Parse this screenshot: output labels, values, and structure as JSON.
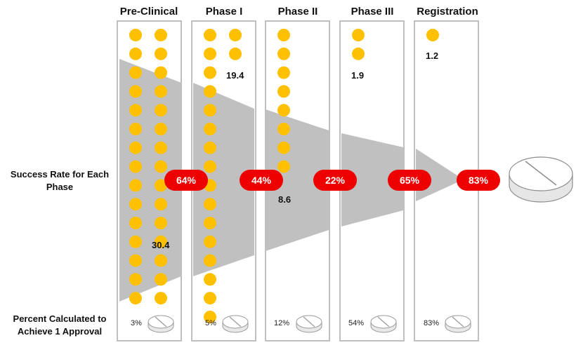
{
  "side_labels": {
    "success_rate": "Success Rate for Each Phase",
    "percent_calc": "Percent Calculated to Achieve 1 Approval"
  },
  "phases": [
    {
      "title": "Pre-Clinical",
      "count": "30.4",
      "success_rate": "64%",
      "percent_to_approval": "3%",
      "dots": 30
    },
    {
      "title": "Phase I",
      "count": "19.4",
      "success_rate": "44%",
      "percent_to_approval": "5%",
      "dots": 18
    },
    {
      "title": "Phase II",
      "count": "8.6",
      "success_rate": "22%",
      "percent_to_approval": "12%",
      "dots": 8
    },
    {
      "title": "Phase III",
      "count": "1.9",
      "success_rate": "65%",
      "percent_to_approval": "54%",
      "dots": 2
    },
    {
      "title": "Registration",
      "count": "1.2",
      "success_rate": "83%",
      "percent_to_approval": "83%",
      "dots": 1
    }
  ],
  "colors": {
    "dot": "#ffc000",
    "funnel": "#c0c0c0",
    "badge": "#ee0000",
    "panel_border": "#bfbfbf"
  },
  "icons": [
    "pill-icon"
  ]
}
